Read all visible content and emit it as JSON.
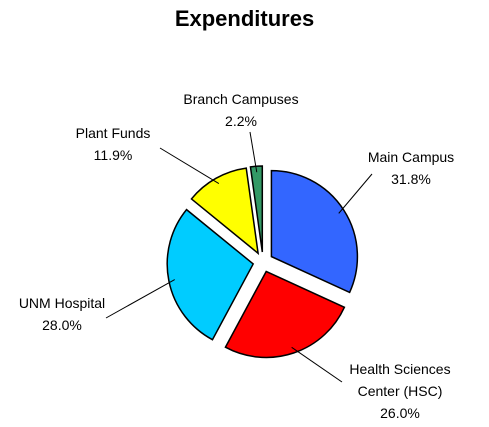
{
  "chart_data": {
    "type": "pie",
    "title": "Expenditures",
    "categories": [
      "Main Campus",
      "Health Sciences Center (HSC)",
      "UNM Hospital",
      "Plant Funds",
      "Branch Campuses"
    ],
    "values": [
      31.8,
      26.0,
      28.0,
      11.9,
      2.2
    ],
    "value_labels": [
      "31.8%",
      "26.0%",
      "28.0%",
      "11.9%",
      "2.2%"
    ],
    "colors": [
      "#3366ff",
      "#ff0000",
      "#00ccff",
      "#ffff00",
      "#339966"
    ]
  }
}
